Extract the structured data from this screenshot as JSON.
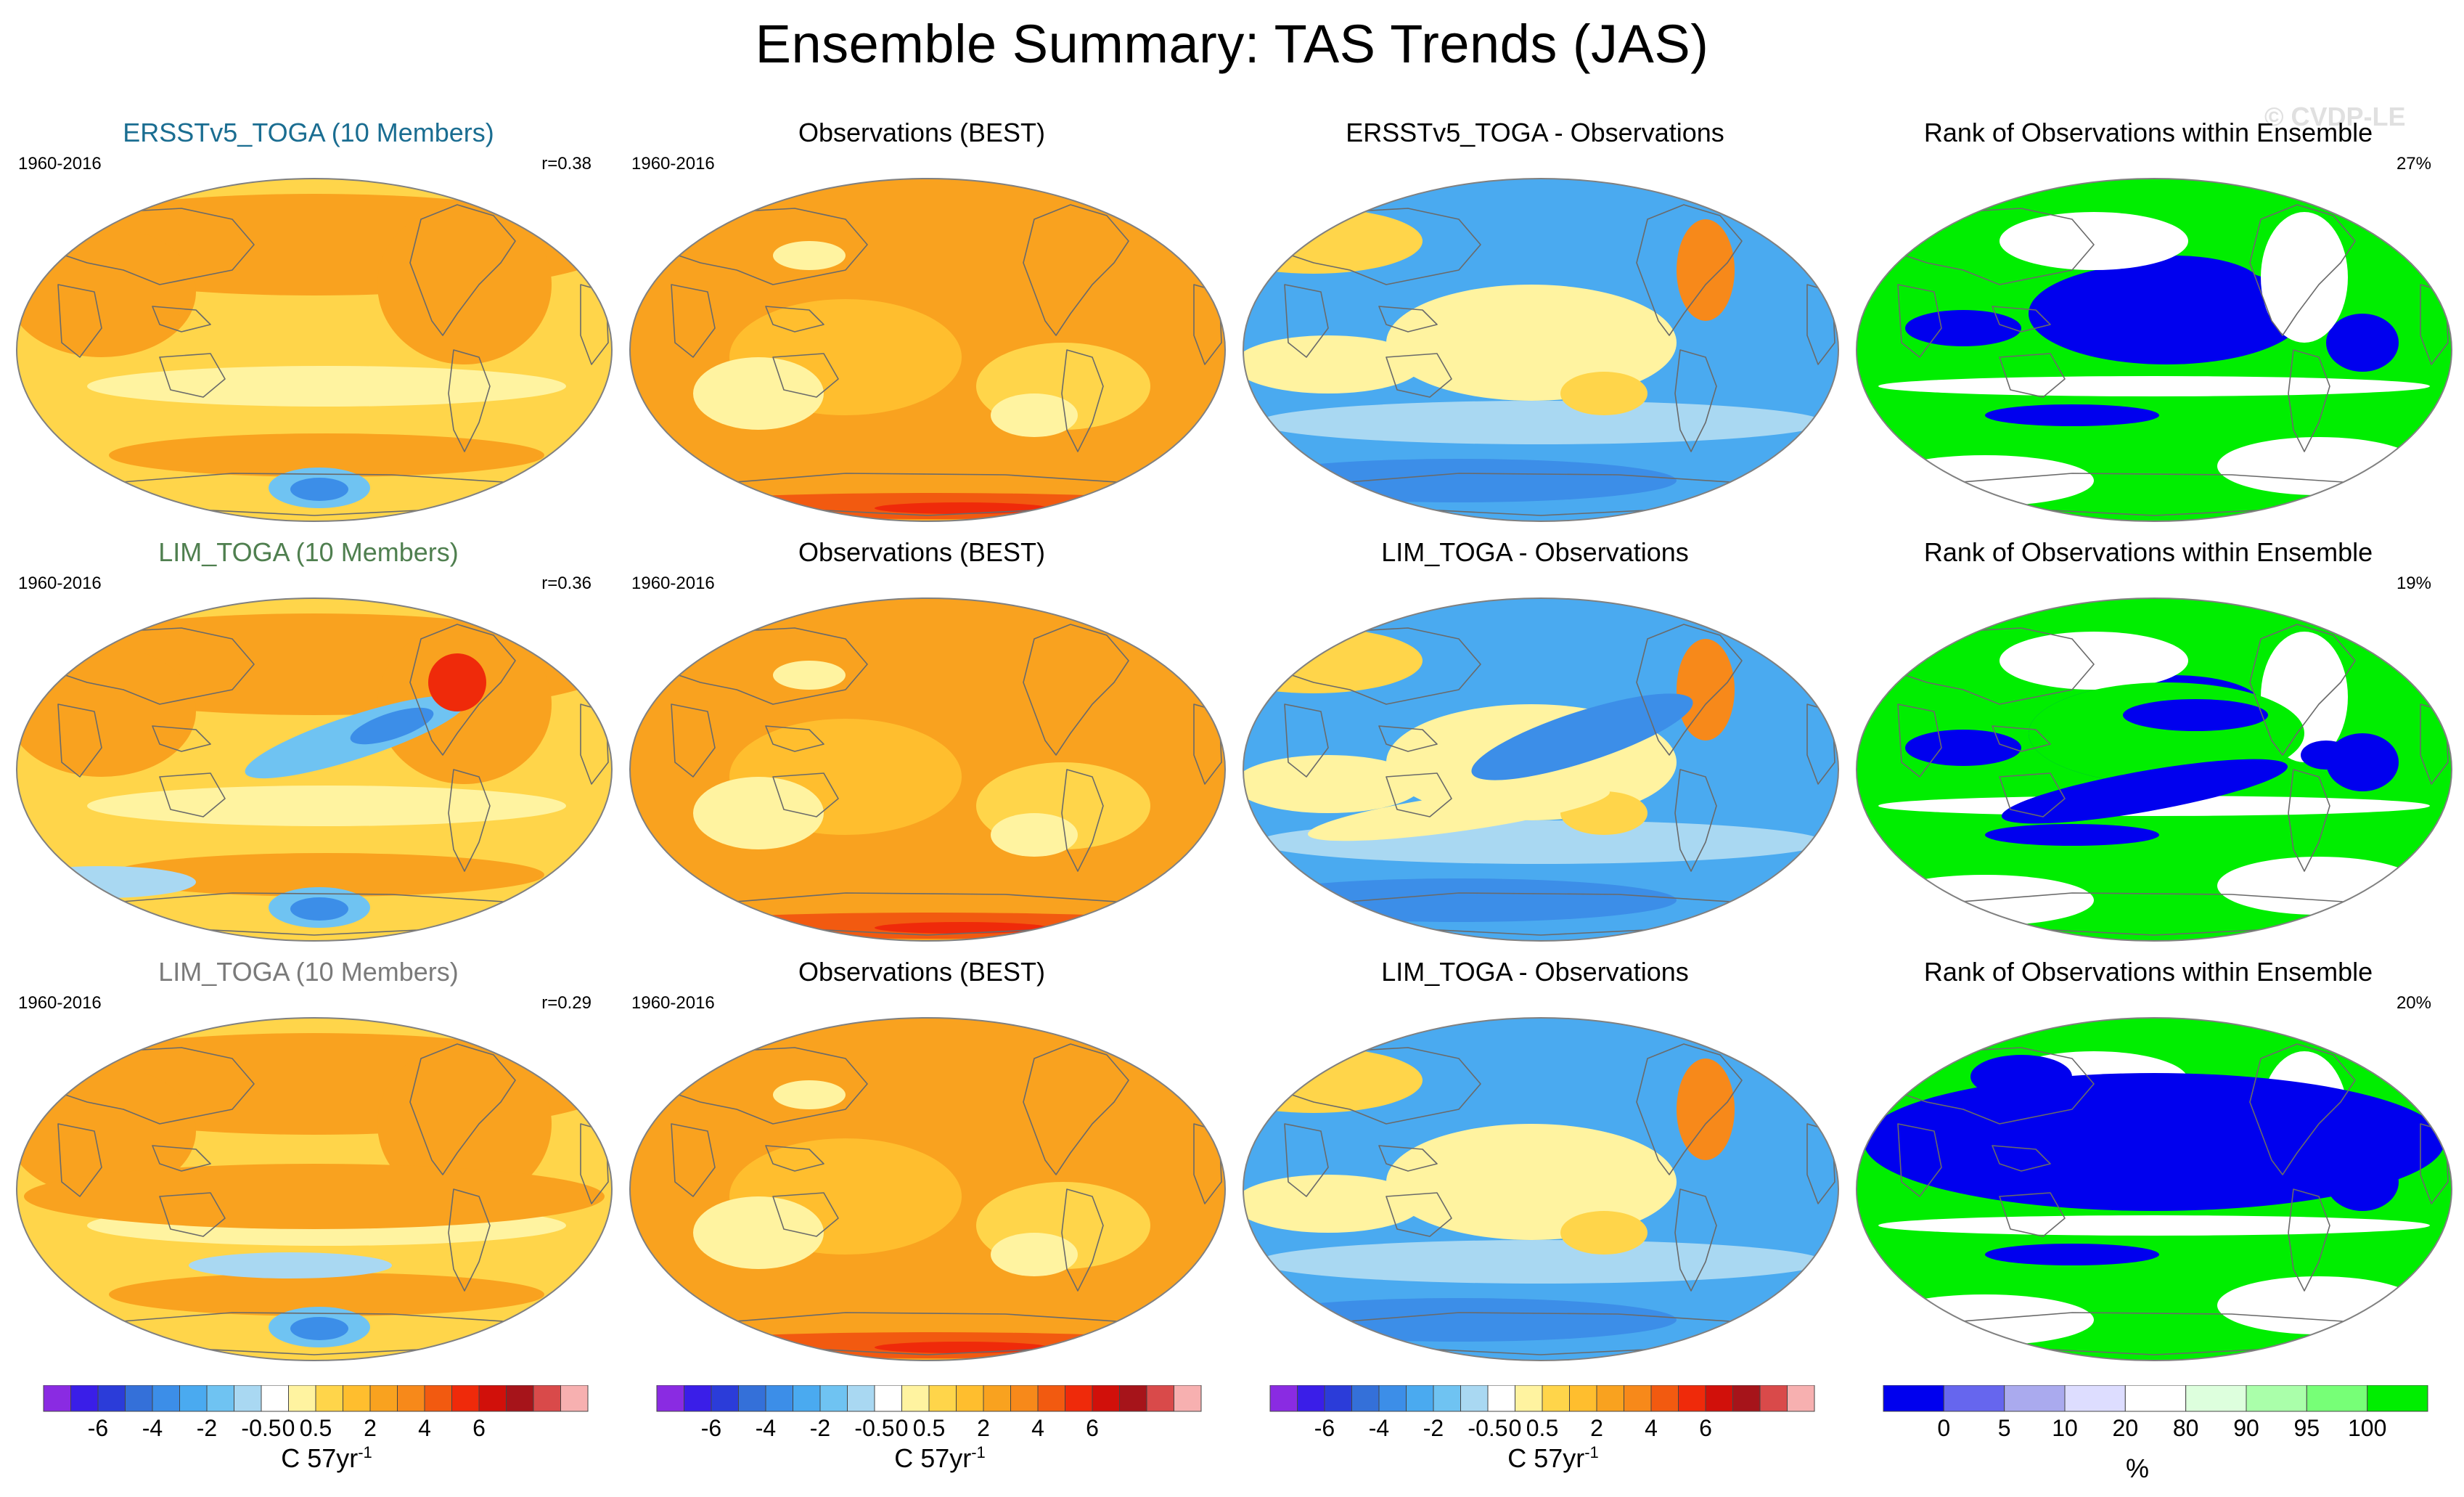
{
  "title": "Ensemble Summary: TAS Trends (JAS)",
  "watermark": "© CVDP-LE",
  "colors": {
    "ensemble_title_1": "#1a6d91",
    "ensemble_title_2": "#4f7f4f",
    "ensemble_title_3": "#7a7a7a",
    "ocean_warm": "#f6a623",
    "rank_low": "#0000ee",
    "rank_high": "#00ee00"
  },
  "rows": [
    {
      "ensemble": {
        "title": "ERSSTv5_TOGA (10 Members)",
        "period": "1960-2016",
        "corr": "r=0.38"
      },
      "observations": {
        "title": "Observations (BEST)",
        "period": "1960-2016"
      },
      "difference": {
        "title": "ERSSTv5_TOGA - Observations"
      },
      "rank": {
        "title": "Rank of Observations within Ensemble",
        "pct": "27%"
      }
    },
    {
      "ensemble": {
        "title": "LIM_TOGA (10 Members)",
        "period": "1960-2016",
        "corr": "r=0.36"
      },
      "observations": {
        "title": "Observations (BEST)",
        "period": "1960-2016"
      },
      "difference": {
        "title": "LIM_TOGA - Observations"
      },
      "rank": {
        "title": "Rank of Observations within Ensemble",
        "pct": "19%"
      }
    },
    {
      "ensemble": {
        "title": "LIM_TOGA (10 Members)",
        "period": "1960-2016",
        "corr": "r=0.29"
      },
      "observations": {
        "title": "Observations (BEST)",
        "period": "1960-2016"
      },
      "difference": {
        "title": "LIM_TOGA - Observations"
      },
      "rank": {
        "title": "Rank of Observations within Ensemble",
        "pct": "20%"
      }
    }
  ],
  "trend_colorbar": {
    "colors": [
      "#8a2be2",
      "#3a1ee8",
      "#2b3cd9",
      "#3470d9",
      "#3c8ee8",
      "#4aaaf0",
      "#6fc3f2",
      "#a9d8f2",
      "#ffffff",
      "#fff3a0",
      "#ffd54a",
      "#ffbe2e",
      "#f9a21f",
      "#f7891a",
      "#f25a10",
      "#ef2a0a",
      "#d1100a",
      "#a6141a",
      "#d94a4a",
      "#f7b0b0"
    ],
    "tick_labels": [
      "-6",
      "-4",
      "-2",
      "-0.5",
      "0",
      "0.5",
      "2",
      "4",
      "6"
    ],
    "unit_text": "C 57yr",
    "unit_exp": "-1"
  },
  "rank_colorbar": {
    "colors": [
      "#0000ee",
      "#6666ee",
      "#aaaaee",
      "#ddddff",
      "#ffffff",
      "#ddffdd",
      "#aaffaa",
      "#77ff77",
      "#00ee00"
    ],
    "tick_labels": [
      "0",
      "5",
      "10",
      "20",
      "80",
      "90",
      "95",
      "100"
    ],
    "unit_text": "%"
  }
}
